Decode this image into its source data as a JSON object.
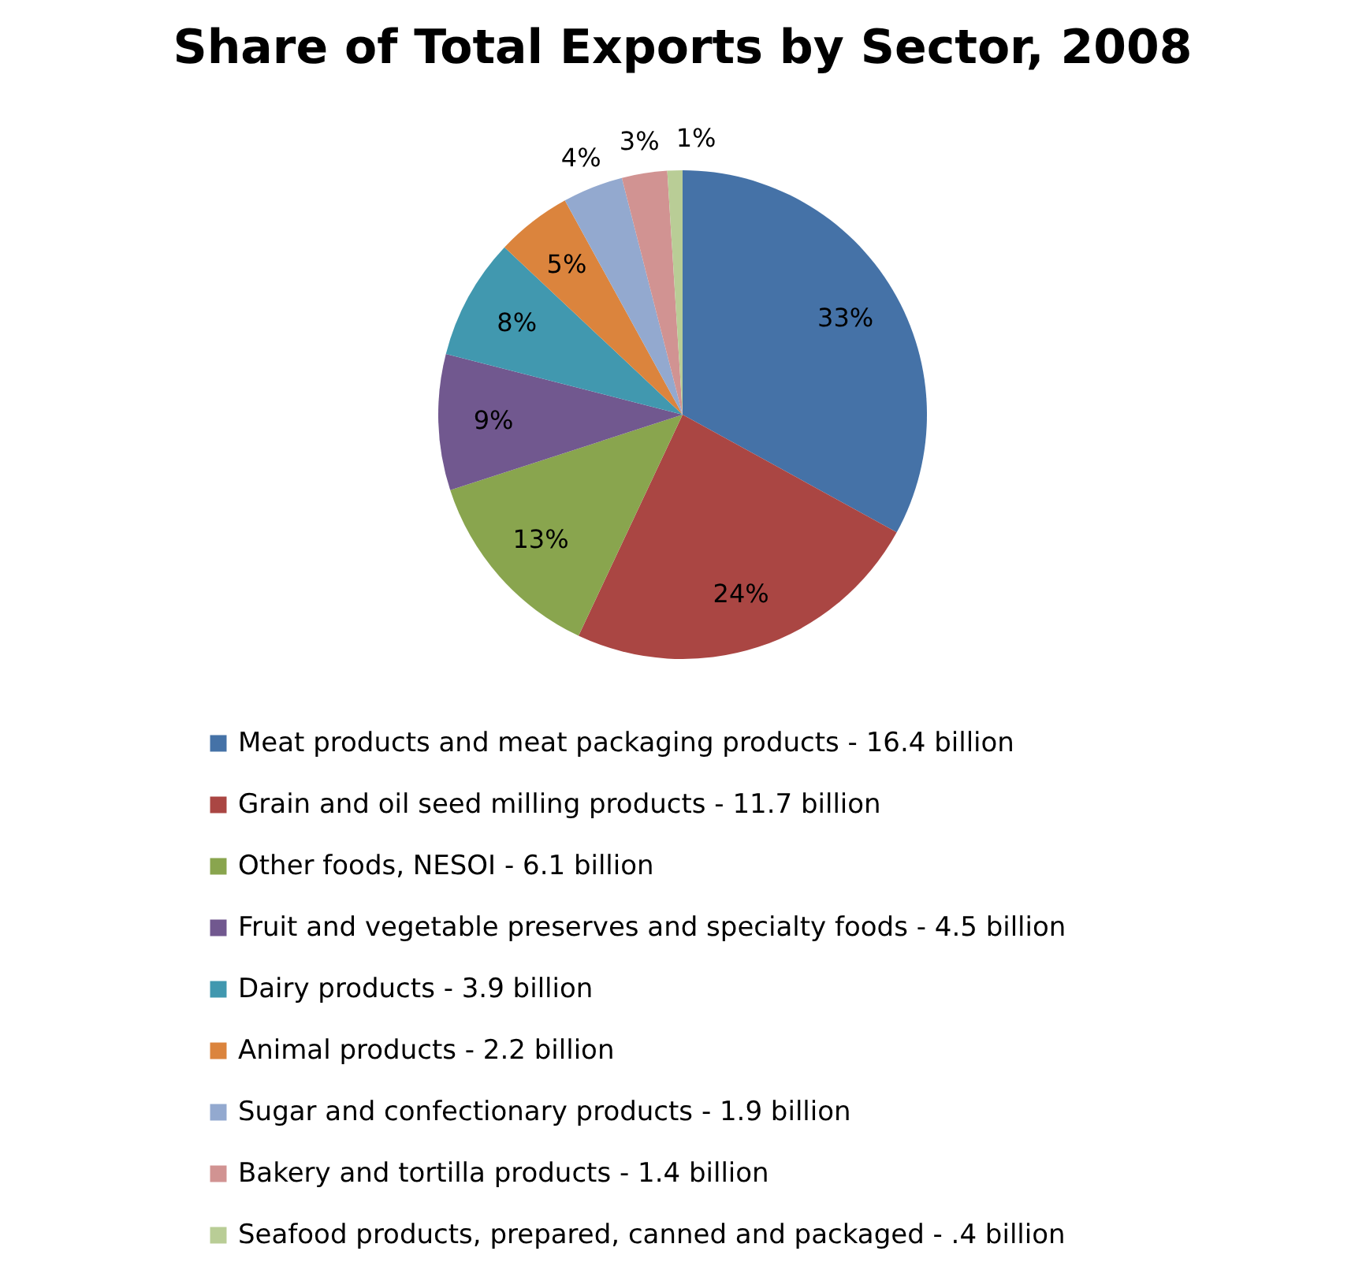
{
  "chart_data": {
    "type": "pie",
    "title": "Share of Total Exports by Sector, 2008",
    "categories": [
      "Meat products and meat packaging products - 16.4 billion",
      "Grain and oil seed milling products - 11.7 billion",
      "Other foods, NESOI - 6.1 billion",
      "Fruit and vegetable preserves and specialty foods - 4.5 billion",
      "Dairy products - 3.9 billion",
      "Animal products - 2.2 billion",
      "Sugar and confectionary products - 1.9 billion",
      "Bakery and tortilla products - 1.4 billion",
      "Seafood products, prepared, canned and packaged - .4 billion"
    ],
    "values": [
      33,
      24,
      13,
      9,
      8,
      5,
      4,
      3,
      1
    ],
    "colors": [
      "#4572a7",
      "#aa4643",
      "#89a54e",
      "#71588f",
      "#4198af",
      "#db843d",
      "#93a9cf",
      "#d19392",
      "#b9cd96"
    ],
    "value_labels": [
      "33%",
      "24%",
      "13%",
      "9%",
      "8%",
      "5%",
      "4%",
      "3%",
      "1%"
    ],
    "legend": "bottom"
  }
}
